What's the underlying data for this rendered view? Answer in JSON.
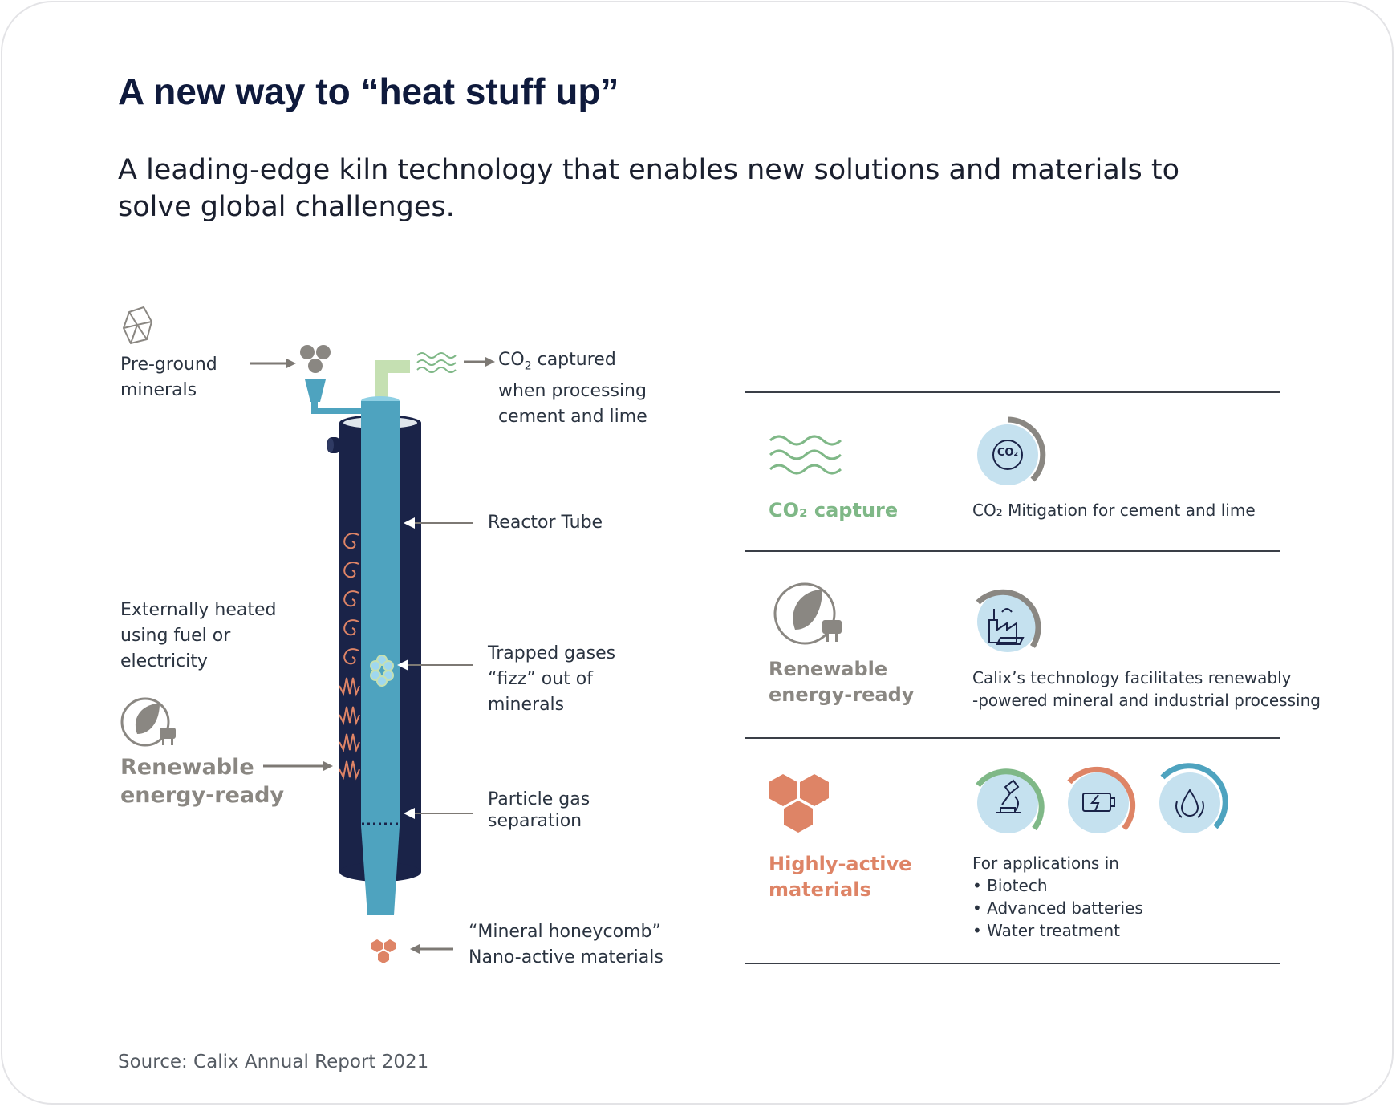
{
  "title": "A new way to “heat stuff up”",
  "subtitle": "A leading-edge kiln technology that enables new solutions and materials to solve global challenges.",
  "diagram": {
    "pre_ground": [
      "Pre-ground",
      "minerals"
    ],
    "co2_captured": [
      "captured",
      "when processing",
      "cement and lime"
    ],
    "co2_prefix": "CO",
    "co2_sub": "2",
    "reactor_tube": "Reactor Tube",
    "externally_heated": [
      "Externally heated",
      "using fuel or",
      "electricity"
    ],
    "renewable": [
      "Renewable",
      "energy-ready"
    ],
    "trapped_gases": [
      "Trapped gases",
      "“fizz” out of",
      "minerals"
    ],
    "particle_gas": [
      "Particle gas",
      "separation"
    ],
    "honeycomb": [
      "“Mineral honeycomb”",
      "Nano-active materials"
    ]
  },
  "right": {
    "co2": {
      "head": "CO₂ capture",
      "desc": "CO₂ Mitigation for cement and lime",
      "badge_text": "CO₂"
    },
    "renewable": {
      "head": [
        "Renewable",
        "energy-ready"
      ],
      "desc": [
        "Calix’s technology facilitates renewably",
        "-powered mineral and industrial processing"
      ]
    },
    "materials": {
      "head": [
        "Highly-active",
        "materials"
      ],
      "desc": "For applications in",
      "bullets": [
        "Biotech",
        "Advanced batteries",
        "Water treatment"
      ]
    }
  },
  "source": "Source: Calix Annual Report 2021",
  "colors": {
    "navy": "#1a2348",
    "tube": "#4ea3bf",
    "green": "#7fb887",
    "orange": "#de8466",
    "grey": "#8a8782",
    "light_blue": "#c5e1ef"
  }
}
